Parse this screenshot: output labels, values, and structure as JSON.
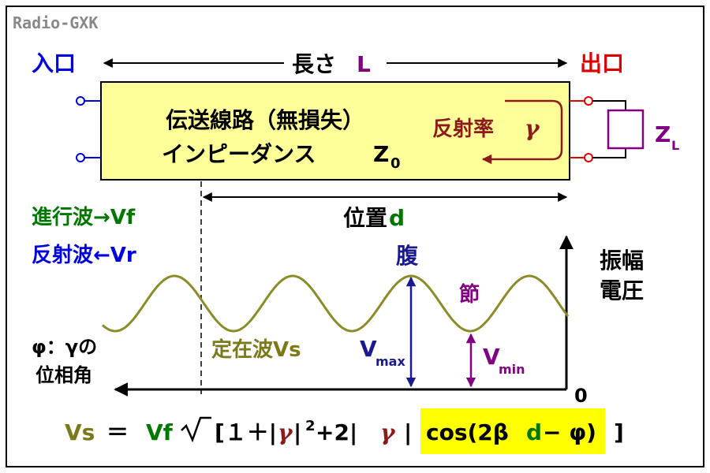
{
  "watermark": "Radio-GXK",
  "length_label": {
    "text": "長さ",
    "symbol": "L"
  },
  "input_label": "入口",
  "output_label": "出口",
  "line_box": {
    "title": "伝送線路（無損失）",
    "impedance_prefix": "インピーダンス",
    "impedance_symbol": "Z",
    "impedance_sub": "0",
    "reflection_label": "反射率",
    "reflection_symbol": "γ"
  },
  "load": {
    "symbol": "Z",
    "sub": "L"
  },
  "position_label": {
    "text": "位置",
    "symbol": "d"
  },
  "forward_wave": "進行波→Vf",
  "reflected_wave": "反射波←Vr",
  "antinode_label": "腹",
  "node_label": "節",
  "amplitude_label": [
    "振幅",
    "電圧"
  ],
  "phase_label": {
    "line1": "φ：γの",
    "line2": "位相角"
  },
  "standing_wave_label": "定在波Vs",
  "vmax": {
    "main": "V",
    "sub": "max"
  },
  "vmin": {
    "main": "V",
    "sub": "min"
  },
  "origin_label": "0",
  "formula": {
    "lhs": "Vs",
    "eq": "＝",
    "vf": "Vf",
    "open": "[１＋|",
    "gamma1": "γ",
    "mid": "|",
    "sup": "2",
    "plus2": "+2|",
    "gamma2": "γ",
    "close_bar": "|",
    "cos_part": "cos(2β",
    "d": "d",
    "phi_part": "− φ)",
    "end": "]"
  },
  "colors": {
    "blue": "#0000dd",
    "red": "#dd0000",
    "purple": "#800080",
    "green": "#007700",
    "olive": "#7a7a1a",
    "wave": "#8b8b2a",
    "darkred": "#8b1a1a",
    "navy": "#1a1a8c",
    "box_fill": "#ffff99",
    "highlight": "#ffff00"
  }
}
